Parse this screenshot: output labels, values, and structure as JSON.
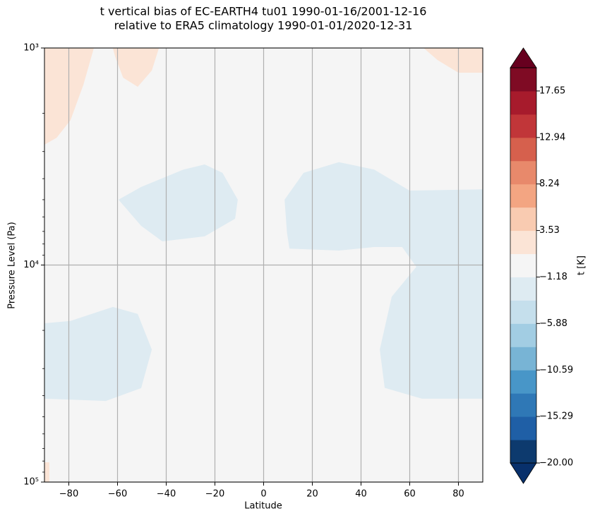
{
  "chart_data": {
    "type": "contourf",
    "title": "t vertical bias of EC-EARTH4 tu01 1990-01-16/2001-12-16",
    "subtitle": "relative to ERA5 climatology 1990-01-01/2020-12-31",
    "x_label": "Latitude",
    "y_label": "Pressure Level (Pa)",
    "xlim": [
      -90,
      90
    ],
    "xticks": [
      {
        "value": -80,
        "label": "−80"
      },
      {
        "value": -60,
        "label": "−60"
      },
      {
        "value": -40,
        "label": "−40"
      },
      {
        "value": -20,
        "label": "−20"
      },
      0,
      20,
      40,
      60,
      80
    ],
    "ylim": [
      1000,
      100000
    ],
    "ylog": true,
    "y_inverted": true,
    "yticks": [
      {
        "value": 1000,
        "label": "10³"
      },
      {
        "value": 10000,
        "label": "10⁴"
      },
      {
        "value": 100000,
        "label": "10⁵"
      }
    ],
    "yminor_ticks": [
      2000,
      3000,
      4000,
      5000,
      6000,
      7000,
      8000,
      9000,
      20000,
      30000,
      40000,
      50000,
      60000,
      70000,
      80000,
      90000
    ],
    "grid": true,
    "background": "#f5f5f5",
    "regions": [
      {
        "color": "#deebf2",
        "lat": [
          -59.6,
          -50.3,
          -32.9,
          -24.2,
          -16.9,
          -10.6,
          -11.7,
          -24.2,
          -41.6,
          -50.3
        ],
        "pressure": [
          5000,
          4370,
          3630,
          3440,
          3760,
          5000,
          6120,
          7380,
          7780,
          6600
        ]
      },
      {
        "color": "#deebf2",
        "lat": [
          8.6,
          16.4,
          30.9,
          45.4,
          59.9,
          90,
          90,
          65,
          49.7,
          47.7,
          52.6,
          62.7,
          56.9,
          45.4,
          30.9,
          10.6,
          9.6
        ],
        "pressure": [
          5000,
          3760,
          3360,
          3630,
          4540,
          4480,
          41300,
          41300,
          36800,
          24500,
          14000,
          10200,
          8260,
          8260,
          8580,
          8400,
          7100
        ]
      },
      {
        "color": "#deebf2",
        "lat": [
          -90,
          -79.3,
          -61.9,
          -51.7,
          -45.9,
          -50.3,
          -64.8,
          -90
        ],
        "pressure": [
          18550,
          18100,
          15600,
          16800,
          24500,
          36900,
          42300,
          41300
        ]
      },
      {
        "color": "#fbe4d6",
        "lat": [
          -90,
          -69.7,
          -74,
          -79.3,
          -85,
          -90
        ],
        "pressure": [
          1000,
          1000,
          1476,
          2150,
          2590,
          2790
        ]
      },
      {
        "color": "#fbe4d6",
        "lat": [
          -61.9,
          -43,
          -45.9,
          -51.7,
          -57.7,
          -61
        ],
        "pressure": [
          1000,
          1000,
          1270,
          1510,
          1370,
          1094
        ]
      },
      {
        "color": "#fbe4d6",
        "lat": [
          65.7,
          90,
          90,
          80,
          71.4
        ],
        "pressure": [
          1000,
          1000,
          1300,
          1300,
          1136
        ]
      },
      {
        "color": "#fbe4d6",
        "lat": [
          -90,
          -88,
          -88,
          -90
        ],
        "pressure": [
          81100,
          81100,
          100000,
          100000
        ]
      }
    ],
    "colorbar": {
      "label": "t [K]",
      "levels": [
        -20,
        -17.647,
        -15.294,
        -12.941,
        -10.588,
        -8.235,
        -5.882,
        -3.529,
        -1.176,
        1.176,
        3.529,
        5.882,
        8.235,
        10.588,
        12.941,
        15.294,
        17.647,
        20
      ],
      "colors": [
        "#0d3a6e",
        "#1f5fa6",
        "#2f78b6",
        "#4896c8",
        "#78b4d5",
        "#a2cde3",
        "#c5dfec",
        "#deebf2",
        "#f5f5f5",
        "#fbe4d6",
        "#f9cbb1",
        "#f3a582",
        "#e8896b",
        "#d6604d",
        "#c13639",
        "#a71b2c",
        "#7f0b24"
      ],
      "under_color": "#08306b",
      "over_color": "#67001f",
      "ticks": [
        {
          "value": -20,
          "label": "−20.00"
        },
        {
          "value": -15.29,
          "label": "−15.29"
        },
        {
          "value": -10.59,
          "label": "−10.59"
        },
        {
          "value": -5.88,
          "label": "−5.88"
        },
        {
          "value": -1.18,
          "label": "−1.18"
        },
        3.53,
        8.24,
        12.94,
        17.65
      ]
    }
  }
}
